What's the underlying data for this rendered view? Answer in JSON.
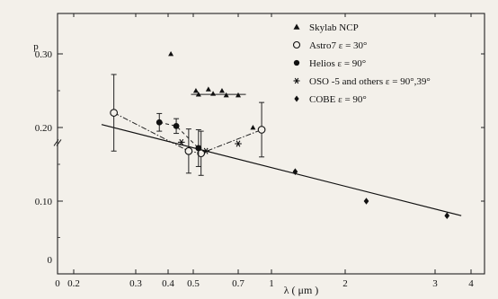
{
  "chart_data": {
    "type": "scatter",
    "xlabel": "λ  ( μm )",
    "ylabel": "p",
    "xscale": "log",
    "xlim": [
      0.2,
      4
    ],
    "ylim": [
      0.0,
      0.35
    ],
    "x_ticks": [
      {
        "label": "0.2",
        "value": 0.2
      },
      {
        "label": "0.3",
        "value": 0.3
      },
      {
        "label": "0.4",
        "value": 0.4
      },
      {
        "label": "0.5",
        "value": 0.5
      },
      {
        "label": "0.7",
        "value": 0.7
      },
      {
        "label": "1",
        "value": 1.0
      },
      {
        "label": "2",
        "value": 2.0
      },
      {
        "label": "3",
        "value": 3.0
      },
      {
        "label": "4",
        "value": 4.0
      }
    ],
    "x_origin_label": "0",
    "y_ticks": [
      {
        "label": "0.10",
        "value": 0.1
      },
      {
        "label": "0.20",
        "value": 0.2
      },
      {
        "label": "0.30",
        "value": 0.3
      }
    ],
    "y_origin_label": "0",
    "legend_position": "top-right",
    "series": [
      {
        "name": "Skylab  NCP",
        "marker": "triangle",
        "points": [
          {
            "x": 0.41,
            "y": 0.3
          },
          {
            "x": 0.51,
            "y": 0.25
          },
          {
            "x": 0.52,
            "y": 0.245
          },
          {
            "x": 0.56,
            "y": 0.252
          },
          {
            "x": 0.58,
            "y": 0.246
          },
          {
            "x": 0.62,
            "y": 0.25
          },
          {
            "x": 0.64,
            "y": 0.244
          },
          {
            "x": 0.7,
            "y": 0.244
          },
          {
            "x": 0.82,
            "y": 0.2
          }
        ],
        "hline": {
          "x_from": 0.49,
          "x_to": 0.76,
          "y": 0.245
        }
      },
      {
        "name": "Astro7  ε = 30°",
        "marker": "open-circle",
        "connect": "dash-dot",
        "points": [
          {
            "x": 0.26,
            "y": 0.22,
            "err": 0.052
          },
          {
            "x": 0.48,
            "y": 0.168,
            "err": 0.03
          },
          {
            "x": 0.53,
            "y": 0.165,
            "err": 0.03
          },
          {
            "x": 0.9,
            "y": 0.197,
            "err": 0.037
          }
        ]
      },
      {
        "name": "Helios  ε = 90°",
        "marker": "filled-circle",
        "connect": "dashed",
        "points": [
          {
            "x": 0.37,
            "y": 0.207,
            "err": 0.012
          },
          {
            "x": 0.43,
            "y": 0.202,
            "err": 0.01
          },
          {
            "x": 0.52,
            "y": 0.172,
            "err": 0.025
          }
        ]
      },
      {
        "name": "OSO -5 and others  ε = 90°,39°",
        "marker": "asterisk",
        "points": [
          {
            "x": 0.45,
            "y": 0.18
          },
          {
            "x": 0.55,
            "y": 0.168
          },
          {
            "x": 0.7,
            "y": 0.178
          }
        ]
      },
      {
        "name": "COBE  ε = 90°",
        "marker": "diamond",
        "points": [
          {
            "x": 1.25,
            "y": 0.14
          },
          {
            "x": 2.2,
            "y": 0.1
          },
          {
            "x": 3.3,
            "y": 0.08
          }
        ]
      }
    ],
    "fit_line": {
      "x1": 0.24,
      "y1": 0.204,
      "x2": 3.7,
      "y2": 0.08
    }
  }
}
